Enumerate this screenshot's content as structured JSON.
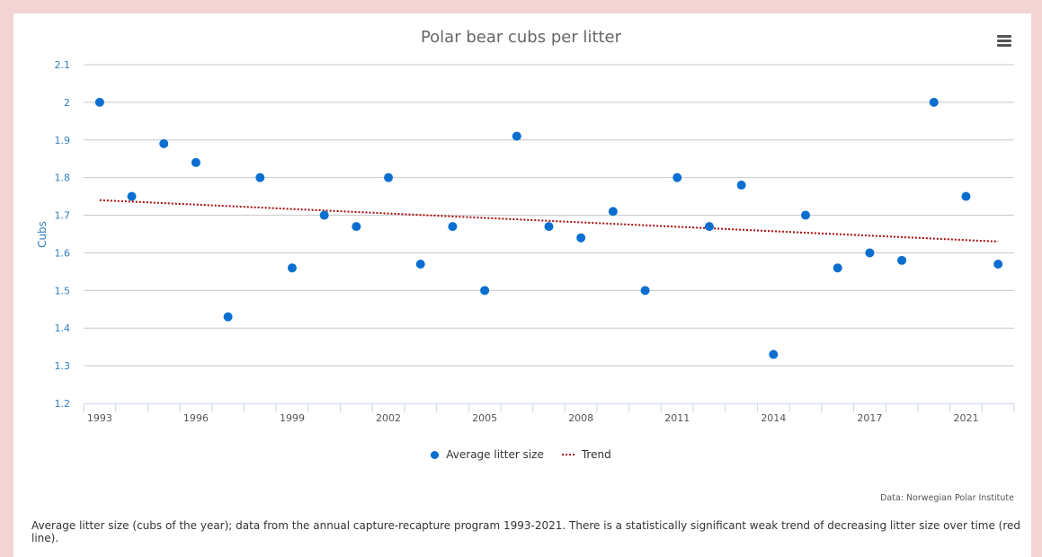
{
  "chart_data": {
    "type": "scatter",
    "title": "Polar bear cubs per litter",
    "xlabel": "",
    "ylabel": "Cubs",
    "ylim": [
      1.2,
      2.1
    ],
    "yticks": [
      "1.2",
      "1.3",
      "1.4",
      "1.5",
      "1.6",
      "1.7",
      "1.8",
      "1.9",
      "2",
      "2.1"
    ],
    "ytick_values": [
      1.2,
      1.3,
      1.4,
      1.5,
      1.6,
      1.7,
      1.8,
      1.9,
      2.0,
      2.1
    ],
    "categories": [
      "1993",
      "1994",
      "1995",
      "1996",
      "1997",
      "1998",
      "1999",
      "2000",
      "2001",
      "2002",
      "2003",
      "2004",
      "2005",
      "2006",
      "2007",
      "2008",
      "2009",
      "2010",
      "2011",
      "2012",
      "2013",
      "2014",
      "2015",
      "2016",
      "2017",
      "2018",
      "2019",
      "2021",
      "2022"
    ],
    "xtick_labels_shown": [
      "1993",
      "1996",
      "1999",
      "2002",
      "2005",
      "2008",
      "2011",
      "2014",
      "2017",
      "2021"
    ],
    "grid": true,
    "legend_position": "bottom-center",
    "series": [
      {
        "name": "Average litter size",
        "type": "scatter",
        "color": "#0b6fd1",
        "values": [
          2.0,
          1.75,
          1.89,
          1.84,
          1.43,
          1.8,
          1.56,
          1.7,
          1.67,
          1.8,
          1.57,
          1.67,
          1.5,
          1.91,
          1.67,
          1.64,
          1.71,
          1.5,
          1.8,
          1.67,
          1.78,
          1.33,
          1.7,
          1.56,
          1.6,
          1.58,
          2.0,
          1.75,
          1.57
        ]
      },
      {
        "name": "Trend",
        "type": "line",
        "style": "dotted",
        "color": "#a60a0a",
        "start": 1.74,
        "end": 1.63
      }
    ]
  },
  "menu": {
    "icon": "hamburger-menu-icon"
  },
  "credits": "Data: Norwegian Polar Institute",
  "caption": "Average litter size (cubs of the year); data from the annual capture-recapture program 1993-2021. There is a statistically significant weak trend of decreasing litter size over time (red line)."
}
